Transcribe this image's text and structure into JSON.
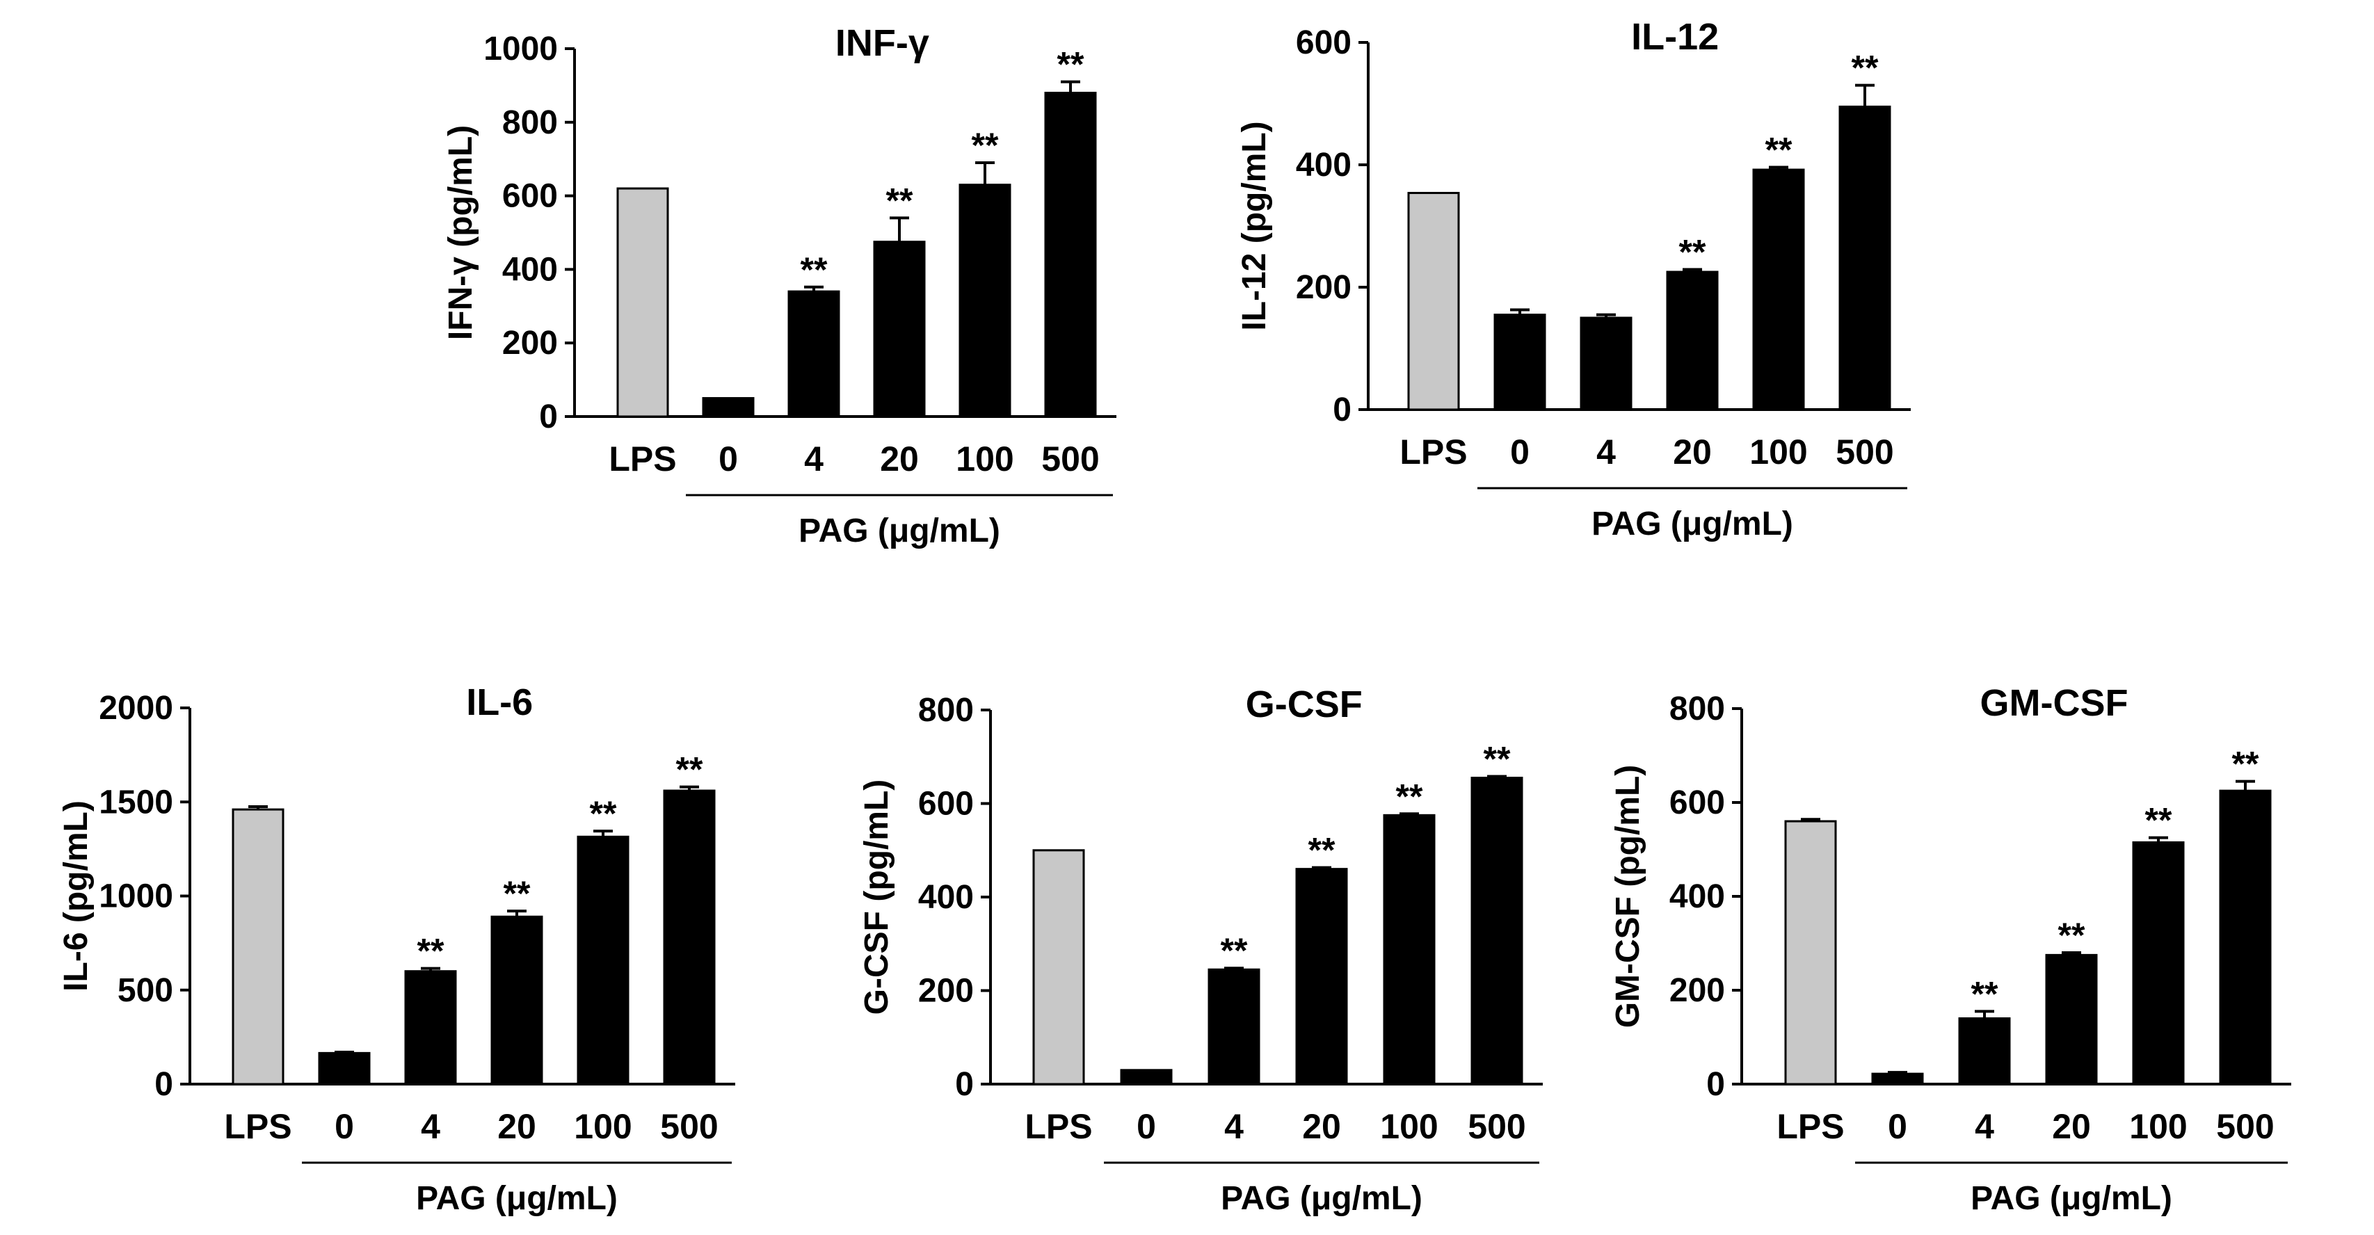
{
  "colors": {
    "lps_bar": "#c8c8c8",
    "pag_bar": "#000000",
    "axis": "#000000"
  },
  "chart_data": [
    {
      "type": "bar",
      "title": "INF-γ",
      "ylabel": "IFN-γ (pg/mL)",
      "xlabel": "PAG (μg/mL)",
      "categories": [
        "LPS",
        "0",
        "4",
        "20",
        "100",
        "500"
      ],
      "values": [
        620,
        50,
        340,
        475,
        630,
        880
      ],
      "errors": [
        0,
        0,
        12,
        65,
        60,
        30
      ],
      "significance": [
        "",
        "",
        "**",
        "**",
        "**",
        "**"
      ],
      "ylim": [
        0,
        1000
      ],
      "yticks": [
        "0",
        "200",
        "400",
        "600",
        "800",
        "1000"
      ]
    },
    {
      "type": "bar",
      "title": "IL-12",
      "ylabel": "IL-12 (pg/mL)",
      "xlabel": "PAG (μg/mL)",
      "categories": [
        "LPS",
        "0",
        "4",
        "20",
        "100",
        "500"
      ],
      "values": [
        354,
        155,
        150,
        225,
        392,
        495
      ],
      "errors": [
        0,
        8,
        5,
        4,
        4,
        35
      ],
      "significance": [
        "",
        "",
        "",
        "**",
        "**",
        "**"
      ],
      "ylim": [
        0,
        600
      ],
      "yticks": [
        "0",
        "200",
        "400",
        "600"
      ]
    },
    {
      "type": "bar",
      "title": "IL-6",
      "ylabel": "IL-6 (pg/mL)",
      "xlabel": "PAG (μg/mL)",
      "categories": [
        "LPS",
        "0",
        "4",
        "20",
        "100",
        "500"
      ],
      "values": [
        1460,
        165,
        600,
        890,
        1315,
        1560
      ],
      "errors": [
        15,
        5,
        15,
        30,
        30,
        20
      ],
      "significance": [
        "",
        "",
        "**",
        "**",
        "**",
        "**"
      ],
      "ylim": [
        0,
        2000
      ],
      "yticks": [
        "0",
        "500",
        "1000",
        "1500",
        "2000"
      ]
    },
    {
      "type": "bar",
      "title": "G-CSF",
      "ylabel": "G-CSF (pg/mL)",
      "xlabel": "PAG (μg/mL)",
      "categories": [
        "LPS",
        "0",
        "4",
        "20",
        "100",
        "500"
      ],
      "values": [
        500,
        30,
        245,
        460,
        575,
        655
      ],
      "errors": [
        0,
        0,
        3,
        3,
        3,
        3
      ],
      "significance": [
        "",
        "",
        "**",
        "**",
        "**",
        "**"
      ],
      "ylim": [
        0,
        800
      ],
      "yticks": [
        "0",
        "200",
        "400",
        "600",
        "800"
      ]
    },
    {
      "type": "bar",
      "title": "GM-CSF",
      "ylabel": "GM-CSF (pg/mL)",
      "xlabel": "PAG (μg/mL)",
      "categories": [
        "LPS",
        "0",
        "4",
        "20",
        "100",
        "500"
      ],
      "values": [
        560,
        22,
        140,
        275,
        515,
        625
      ],
      "errors": [
        4,
        3,
        15,
        5,
        10,
        20
      ],
      "significance": [
        "",
        "",
        "**",
        "**",
        "**",
        "**"
      ],
      "ylim": [
        0,
        800
      ],
      "yticks": [
        "0",
        "200",
        "400",
        "600",
        "800"
      ]
    }
  ]
}
